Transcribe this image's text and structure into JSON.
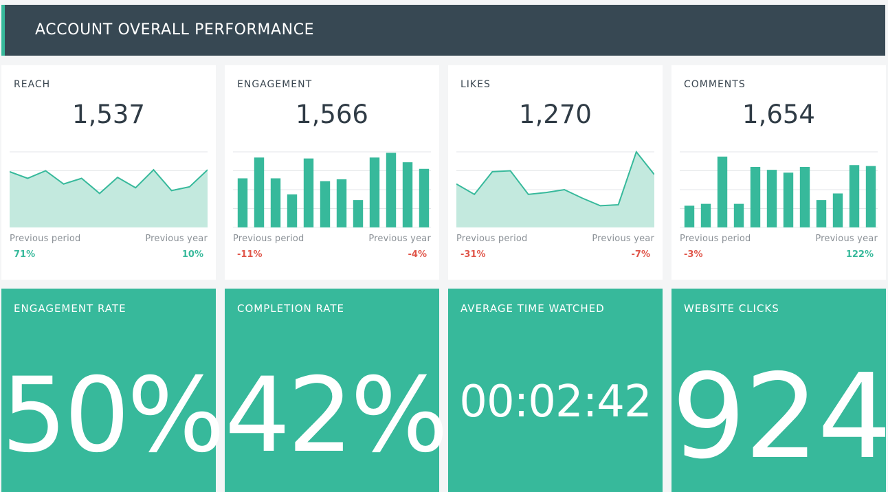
{
  "header": {
    "title": "ACCOUNT OVERALL PERFORMANCE"
  },
  "colors": {
    "accent": "#37b99b",
    "header_bg": "#374853",
    "negative": "#e05549",
    "area_fill": "#c3e9de"
  },
  "kpi_cards": [
    {
      "title": "REACH",
      "value": "1,537",
      "chart_type": "area",
      "series": [
        59,
        52,
        60,
        46,
        52,
        36,
        53,
        42,
        61,
        39,
        43,
        61
      ],
      "prev_period_label": "Previous period",
      "prev_period_value": "71%",
      "prev_period_trend": "positive",
      "prev_year_label": "Previous year",
      "prev_year_value": "10%",
      "prev_year_trend": "positive"
    },
    {
      "title": "ENGAGEMENT",
      "value": "1,566",
      "chart_type": "bar",
      "series": [
        52,
        74,
        52,
        35,
        73,
        49,
        51,
        29,
        74,
        79,
        69,
        62
      ],
      "prev_period_label": "Previous period",
      "prev_period_value": "-11%",
      "prev_period_trend": "negative",
      "prev_year_label": "Previous year",
      "prev_year_value": "-4%",
      "prev_year_trend": "negative"
    },
    {
      "title": "LIKES",
      "value": "1,270",
      "chart_type": "area",
      "series": [
        46,
        35,
        59,
        60,
        35,
        37,
        40,
        31,
        23,
        24,
        80,
        56
      ],
      "prev_period_label": "Previous period",
      "prev_period_value": "-31%",
      "prev_period_trend": "negative",
      "prev_year_label": "Previous year",
      "prev_year_value": "-7%",
      "prev_year_trend": "negative"
    },
    {
      "title": "COMMENTS",
      "value": "1,654",
      "chart_type": "bar",
      "series": [
        23,
        25,
        75,
        25,
        64,
        61,
        58,
        64,
        29,
        36,
        66,
        65
      ],
      "prev_period_label": "Previous period",
      "prev_period_value": "-3%",
      "prev_period_trend": "negative",
      "prev_year_label": "Previous year",
      "prev_year_value": "122%",
      "prev_year_trend": "positive"
    }
  ],
  "big_tiles": [
    {
      "title": "ENGAGEMENT RATE",
      "value": "50%"
    },
    {
      "title": "COMPLETION RATE",
      "value": "42%"
    },
    {
      "title": "AVERAGE TIME WATCHED",
      "value": "00:02:42"
    },
    {
      "title": "WEBSITE CLICKS",
      "value": "924"
    }
  ]
}
